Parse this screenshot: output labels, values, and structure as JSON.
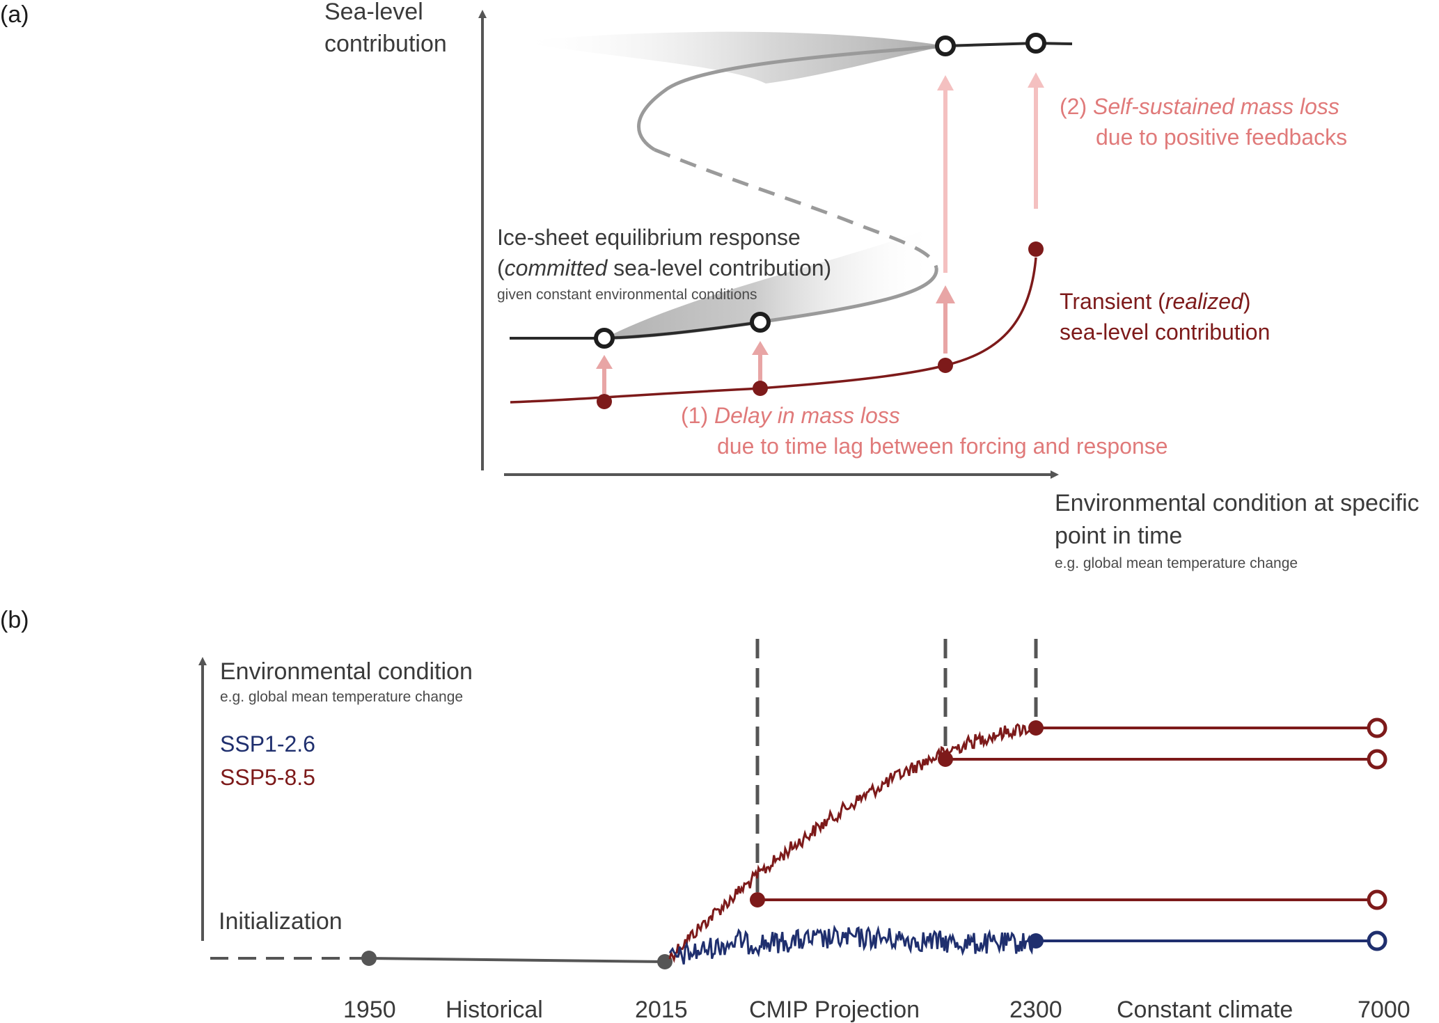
{
  "panel_a": {
    "label": "(a)",
    "y_axis_label": [
      "Sea-level",
      "contribution"
    ],
    "x_axis_label": [
      "Environmental condition at specific",
      "point in time"
    ],
    "x_axis_sublabel": "e.g. global mean temperature change",
    "equilibrium_label": {
      "line1": "Ice-sheet equilibrium response",
      "line2_italic": "committed",
      "line2_open": "(",
      "line2_rest": " sea-level contribution)",
      "sub": "given constant environmental conditions"
    },
    "transient_label": {
      "line1_pre": "Transient (",
      "line1_italic": "realized",
      "line1_post": ")",
      "line2": "sea-level contribution"
    },
    "annotation_1": {
      "prefix": "(1) ",
      "italic": "Delay in mass loss",
      "line2": "due to time lag between forcing and response"
    },
    "annotation_2": {
      "prefix": "(2) ",
      "italic": "Self-sustained mass loss",
      "line2": "due to positive feedbacks"
    }
  },
  "panel_b": {
    "label": "(b)",
    "y_axis_label": "Environmental condition",
    "y_axis_sublabel": "e.g. global mean temperature change",
    "legend": [
      {
        "name": "SSP1-2.6",
        "color": "#1f2f6e"
      },
      {
        "name": "SSP5-8.5",
        "color": "#7d1a1a"
      }
    ],
    "initialization_label": "Initialization",
    "x_labels": [
      "1950",
      "Historical",
      "2015",
      "CMIP Projection",
      "2300",
      "Constant climate",
      "7000"
    ]
  },
  "colors": {
    "maroon": "#7d1a1a",
    "pink": "#f4b5b5",
    "navy": "#1f2f6e",
    "grey": "#555555"
  }
}
